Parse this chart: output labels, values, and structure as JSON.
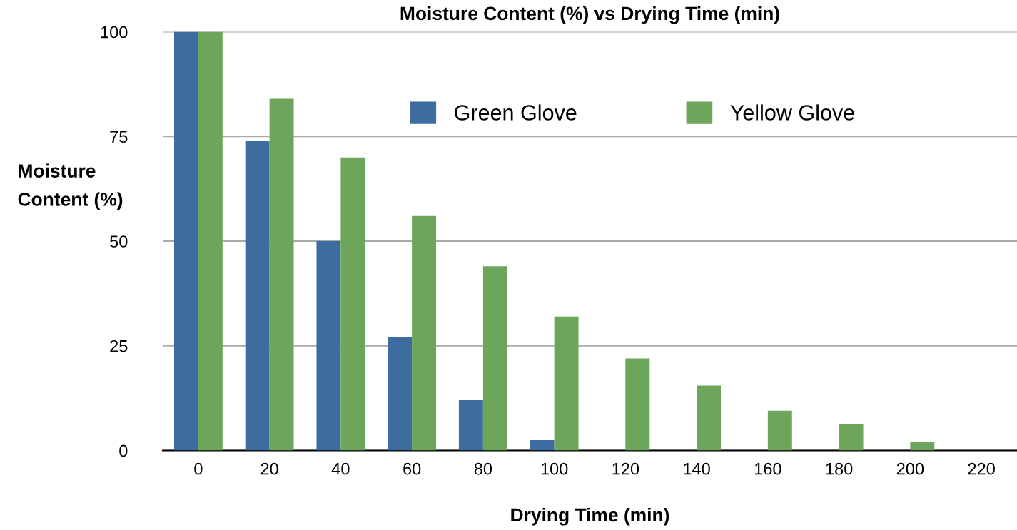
{
  "chart_data": {
    "type": "bar",
    "title": "Moisture Content (%) vs Drying Time (min)",
    "xlabel": "Drying Time (min)",
    "ylabel": "Moisture\nContent (%)",
    "categories": [
      "0",
      "20",
      "40",
      "60",
      "80",
      "100",
      "120",
      "140",
      "160",
      "180",
      "200",
      "220"
    ],
    "series": [
      {
        "name": "Green Glove",
        "color": "#3d6c9e",
        "values": [
          100,
          74,
          50,
          27,
          12,
          2.5,
          0,
          0,
          0,
          0,
          0,
          0
        ]
      },
      {
        "name": "Yellow Glove",
        "color": "#6da55a",
        "values": [
          100,
          84,
          70,
          56,
          44,
          32,
          22,
          15.5,
          9.5,
          6.3,
          2,
          0
        ]
      }
    ],
    "ylim": [
      0,
      100
    ],
    "yticks": [
      0,
      25,
      50,
      75,
      100
    ],
    "grid": "y",
    "legend": "top"
  }
}
